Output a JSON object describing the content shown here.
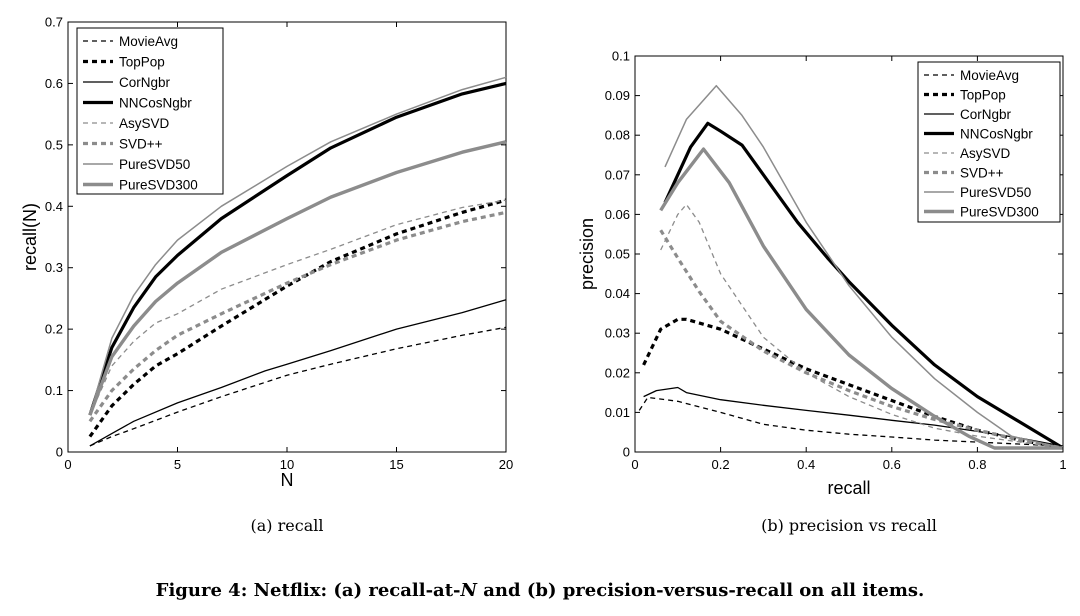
{
  "series_styles": [
    {
      "name": "MovieAvg",
      "color": "#000000",
      "width": 1.3,
      "dash": "5,4"
    },
    {
      "name": "TopPop",
      "color": "#000000",
      "width": 3.2,
      "dash": "5,4"
    },
    {
      "name": "CorNgbr",
      "color": "#000000",
      "width": 1.3,
      "dash": ""
    },
    {
      "name": "NNCosNgbr",
      "color": "#000000",
      "width": 3.2,
      "dash": ""
    },
    {
      "name": "AsySVD",
      "color": "#8c8c8c",
      "width": 1.3,
      "dash": "5,4"
    },
    {
      "name": "SVD++",
      "color": "#8c8c8c",
      "width": 3.2,
      "dash": "5,4"
    },
    {
      "name": "PureSVD50",
      "color": "#8c8c8c",
      "width": 1.5,
      "dash": ""
    },
    {
      "name": "PureSVD300",
      "color": "#8c8c8c",
      "width": 3.4,
      "dash": ""
    }
  ],
  "chart_data": [
    {
      "type": "line",
      "subcaption": "(a) recall",
      "xlabel": "N",
      "ylabel": "recall(N)",
      "xlim": [
        0,
        20
      ],
      "ylim": [
        0,
        0.7
      ],
      "xticks": [
        0,
        5,
        10,
        15,
        20
      ],
      "xtick_labels": [
        "0",
        "5",
        "10",
        "15",
        "20"
      ],
      "yticks": [
        0,
        0.1,
        0.2,
        0.3,
        0.4,
        0.5,
        0.6,
        0.7
      ],
      "ytick_labels": [
        "0",
        "0.1",
        "0.2",
        "0.3",
        "0.4",
        "0.5",
        "0.6",
        "0.7"
      ],
      "grid": false,
      "legend_position": "top-left",
      "series": [
        {
          "name": "MovieAvg",
          "x": [
            1,
            2,
            3,
            5,
            7,
            10,
            12,
            15,
            18,
            20
          ],
          "values": [
            0.01,
            0.025,
            0.038,
            0.065,
            0.09,
            0.125,
            0.143,
            0.168,
            0.19,
            0.203
          ]
        },
        {
          "name": "TopPop",
          "x": [
            1,
            2,
            3,
            4,
            5,
            7,
            10,
            12,
            15,
            18,
            20
          ],
          "values": [
            0.025,
            0.075,
            0.11,
            0.14,
            0.16,
            0.205,
            0.27,
            0.31,
            0.355,
            0.39,
            0.41
          ]
        },
        {
          "name": "CorNgbr",
          "x": [
            1,
            2,
            3,
            5,
            7,
            9,
            10,
            12,
            15,
            18,
            20
          ],
          "values": [
            0.01,
            0.03,
            0.05,
            0.08,
            0.105,
            0.132,
            0.143,
            0.165,
            0.2,
            0.227,
            0.248
          ]
        },
        {
          "name": "NNCosNgbr",
          "x": [
            1,
            2,
            3,
            4,
            5,
            7,
            10,
            12,
            15,
            18,
            20
          ],
          "values": [
            0.06,
            0.17,
            0.235,
            0.285,
            0.32,
            0.38,
            0.45,
            0.495,
            0.545,
            0.583,
            0.6
          ]
        },
        {
          "name": "AsySVD",
          "x": [
            1,
            2,
            3,
            4,
            5,
            7,
            10,
            12,
            15,
            18,
            20
          ],
          "values": [
            0.06,
            0.14,
            0.18,
            0.21,
            0.225,
            0.265,
            0.305,
            0.33,
            0.37,
            0.398,
            0.41
          ]
        },
        {
          "name": "SVD++",
          "x": [
            1,
            2,
            3,
            4,
            5,
            7,
            10,
            12,
            15,
            18,
            20
          ],
          "values": [
            0.05,
            0.1,
            0.135,
            0.165,
            0.19,
            0.225,
            0.275,
            0.305,
            0.345,
            0.375,
            0.39
          ]
        },
        {
          "name": "PureSVD50",
          "x": [
            1,
            2,
            3,
            4,
            5,
            7,
            10,
            12,
            15,
            18,
            20
          ],
          "values": [
            0.06,
            0.185,
            0.255,
            0.305,
            0.345,
            0.4,
            0.465,
            0.505,
            0.55,
            0.59,
            0.61
          ]
        },
        {
          "name": "PureSVD300",
          "x": [
            1,
            2,
            3,
            4,
            5,
            7,
            10,
            12,
            15,
            18,
            20
          ],
          "values": [
            0.06,
            0.155,
            0.205,
            0.245,
            0.275,
            0.325,
            0.38,
            0.415,
            0.455,
            0.488,
            0.505
          ]
        }
      ]
    },
    {
      "type": "line",
      "subcaption": "(b) precision vs recall",
      "xlabel": "recall",
      "ylabel": "precision",
      "xlim": [
        0,
        1
      ],
      "ylim": [
        0,
        0.1
      ],
      "xticks": [
        0,
        0.2,
        0.4,
        0.6,
        0.8,
        1
      ],
      "xtick_labels": [
        "0",
        "0.2",
        "0.4",
        "0.6",
        "0.8",
        "1"
      ],
      "yticks": [
        0,
        0.01,
        0.02,
        0.03,
        0.04,
        0.05,
        0.06,
        0.07,
        0.08,
        0.09,
        0.1
      ],
      "ytick_labels": [
        "0",
        "0.01",
        "0.02",
        "0.03",
        "0.04",
        "0.05",
        "0.06",
        "0.07",
        "0.08",
        "0.09",
        "0.1"
      ],
      "grid": false,
      "legend_position": "top-right",
      "series": [
        {
          "name": "MovieAvg",
          "x": [
            0.01,
            0.03,
            0.1,
            0.2,
            0.3,
            0.4,
            0.5,
            0.6,
            0.7,
            0.8,
            0.9,
            1.0
          ],
          "values": [
            0.0105,
            0.0138,
            0.0128,
            0.01,
            0.007,
            0.0055,
            0.0045,
            0.0038,
            0.003,
            0.0025,
            0.002,
            0.0015
          ]
        },
        {
          "name": "TopPop",
          "x": [
            0.02,
            0.06,
            0.1,
            0.12,
            0.2,
            0.3,
            0.4,
            0.5,
            0.6,
            0.7,
            0.8,
            0.9,
            1.0
          ],
          "values": [
            0.022,
            0.031,
            0.0335,
            0.0335,
            0.031,
            0.026,
            0.021,
            0.017,
            0.013,
            0.009,
            0.0055,
            0.003,
            0.001
          ]
        },
        {
          "name": "CorNgbr",
          "x": [
            0.02,
            0.05,
            0.1,
            0.12,
            0.2,
            0.3,
            0.4,
            0.5,
            0.6,
            0.7,
            0.8,
            0.9,
            1.0
          ],
          "values": [
            0.014,
            0.0155,
            0.0163,
            0.015,
            0.0132,
            0.0118,
            0.0105,
            0.0093,
            0.008,
            0.0068,
            0.0052,
            0.0035,
            0.0015
          ]
        },
        {
          "name": "NNCosNgbr",
          "x": [
            0.07,
            0.1,
            0.13,
            0.17,
            0.2,
            0.25,
            0.3,
            0.38,
            0.45,
            0.5,
            0.6,
            0.7,
            0.8,
            0.9,
            1.0
          ],
          "values": [
            0.063,
            0.07,
            0.077,
            0.083,
            0.081,
            0.0775,
            0.07,
            0.058,
            0.049,
            0.043,
            0.032,
            0.022,
            0.014,
            0.0075,
            0.001
          ]
        },
        {
          "name": "AsySVD",
          "x": [
            0.06,
            0.1,
            0.12,
            0.15,
            0.2,
            0.3,
            0.4,
            0.5,
            0.6,
            0.7,
            0.8,
            0.9,
            1.0
          ],
          "values": [
            0.051,
            0.06,
            0.0625,
            0.058,
            0.045,
            0.029,
            0.02,
            0.014,
            0.0095,
            0.006,
            0.004,
            0.0025,
            0.001
          ]
        },
        {
          "name": "SVD++",
          "x": [
            0.06,
            0.1,
            0.15,
            0.2,
            0.3,
            0.4,
            0.5,
            0.6,
            0.7,
            0.8,
            0.9,
            1.0
          ],
          "values": [
            0.056,
            0.049,
            0.0405,
            0.033,
            0.0255,
            0.02,
            0.0155,
            0.0115,
            0.0082,
            0.0055,
            0.003,
            0.001
          ]
        },
        {
          "name": "PureSVD50",
          "x": [
            0.07,
            0.12,
            0.19,
            0.25,
            0.3,
            0.4,
            0.5,
            0.6,
            0.7,
            0.8,
            0.88,
            1.0
          ],
          "values": [
            0.072,
            0.084,
            0.0925,
            0.085,
            0.077,
            0.058,
            0.042,
            0.029,
            0.0185,
            0.01,
            0.004,
            0.001
          ]
        },
        {
          "name": "PureSVD300",
          "x": [
            0.06,
            0.1,
            0.16,
            0.22,
            0.3,
            0.4,
            0.5,
            0.6,
            0.7,
            0.78,
            0.84,
            0.9,
            1.0
          ],
          "values": [
            0.061,
            0.068,
            0.0765,
            0.068,
            0.052,
            0.036,
            0.0245,
            0.016,
            0.009,
            0.004,
            0.001,
            0.001,
            0.001
          ]
        }
      ]
    }
  ],
  "figure_caption": {
    "prefix": "Figure 4: Netflix: (a) recall-at-",
    "italic": "N",
    "suffix": " and (b) precision-versus-recall on all items."
  }
}
